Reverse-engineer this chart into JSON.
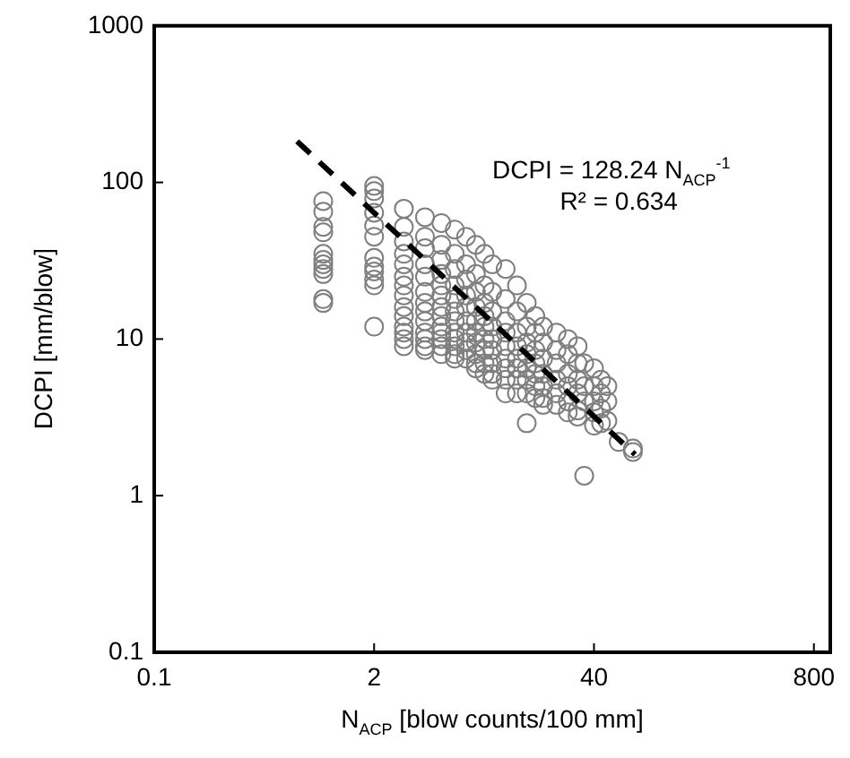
{
  "chart_data": {
    "type": "scatter",
    "xlabel": "N$_{ACP}$ [blow counts/100 mm]",
    "ylabel": "DCPI [mm/blow]",
    "annotations": [
      "DCPI = 128.24  N$_{ACP}$$^{-1}$",
      "R² = 0.634"
    ],
    "log": "xy",
    "grid": false,
    "legend": false,
    "xlim": [
      0.1,
      1000
    ],
    "xticks": [
      0.1,
      2,
      40,
      800
    ],
    "ylim": [
      0.1,
      1000
    ],
    "yticks": [
      0.1,
      1,
      10,
      100,
      1000
    ],
    "series": [
      {
        "marker": "circle",
        "color": "#7f7f7f",
        "x": [
          1,
          1,
          1,
          1,
          1,
          1,
          1,
          1,
          1,
          1,
          1,
          2,
          2,
          2,
          2,
          2,
          2,
          2,
          2,
          2,
          2,
          2,
          2,
          3,
          3,
          3,
          3,
          3,
          3,
          3,
          3,
          3,
          3,
          3,
          3,
          3,
          3,
          4,
          4,
          4,
          4,
          4,
          4,
          4,
          4,
          4,
          4,
          4,
          4,
          4,
          5,
          5,
          5,
          5,
          5,
          5,
          5,
          5,
          5,
          5,
          5,
          5,
          5,
          6,
          6,
          6,
          6,
          6,
          6,
          6,
          6,
          6,
          6,
          6,
          6,
          7,
          7,
          7,
          7,
          7,
          7,
          7,
          7,
          7,
          7,
          8,
          8,
          8,
          8,
          8,
          8,
          8,
          8,
          8,
          8,
          9,
          9,
          9,
          9,
          9,
          9,
          9,
          9,
          9,
          10,
          10,
          10,
          10,
          10,
          10,
          10,
          10,
          10,
          12,
          12,
          12,
          12,
          12,
          12,
          12,
          12,
          12,
          14,
          14,
          14,
          14,
          14,
          14,
          14,
          14,
          16,
          16,
          16,
          16,
          16,
          16,
          16,
          16,
          18,
          18,
          18,
          18,
          18,
          18,
          18,
          20,
          20,
          20,
          20,
          20,
          20,
          20,
          24,
          24,
          24,
          24,
          24,
          24,
          28,
          28,
          28,
          28,
          28,
          28,
          32,
          32,
          32,
          32,
          32,
          32,
          35,
          35,
          35,
          35,
          40,
          40,
          40,
          40,
          40,
          44,
          44,
          44,
          44,
          48,
          48,
          48,
          56,
          68,
          68
        ],
        "values": [
          76,
          65,
          52,
          48,
          35,
          32,
          30,
          28,
          26,
          18,
          17,
          95,
          88,
          79,
          64,
          53,
          45,
          33,
          29,
          27,
          24,
          22,
          12,
          68,
          52,
          42,
          35,
          30,
          25,
          22,
          19,
          16,
          14,
          12,
          11,
          10,
          9,
          60,
          45,
          38,
          30,
          25,
          20,
          17,
          15,
          13,
          11,
          10,
          9,
          8.5,
          55,
          40,
          32,
          26,
          22,
          19,
          16,
          14,
          12,
          11,
          10,
          9,
          8,
          50,
          35,
          28,
          22,
          18,
          15,
          13,
          11,
          10,
          9,
          8,
          7.5,
          45,
          30,
          24,
          19,
          16,
          13,
          11,
          9.5,
          8.5,
          7.5,
          40,
          26,
          20,
          16,
          13,
          11,
          9.5,
          8,
          7,
          6.5,
          35,
          22,
          17,
          14,
          12,
          10,
          8.5,
          7,
          6,
          30,
          20,
          15,
          12,
          10,
          8.5,
          7,
          6,
          5.5,
          28,
          18,
          13,
          11,
          9,
          7.5,
          6.5,
          5.5,
          4.5,
          22,
          15,
          11,
          9,
          7.5,
          6.5,
          5.5,
          4.5,
          17,
          12,
          9.5,
          8,
          6.5,
          5.5,
          4.5,
          2.9,
          14,
          11,
          8.5,
          7,
          6,
          5,
          4.2,
          12,
          9.5,
          7.5,
          6,
          5,
          4.2,
          3.8,
          11,
          8.5,
          7,
          5.5,
          4.5,
          3.8,
          10,
          8,
          6,
          5,
          4,
          3.4,
          9,
          7,
          5.5,
          4.5,
          3.5,
          3.2,
          1.34,
          7,
          5,
          4,
          6.5,
          5,
          4,
          3.4,
          2.8,
          5.5,
          4.5,
          3.6,
          2.9,
          5,
          4,
          3,
          2.2,
          1.9,
          2
        ]
      },
      {
        "type": "line",
        "marker": "none",
        "line_style": "dashed",
        "color": "#000000",
        "x": [
          0.7,
          70
        ],
        "values": [
          183,
          1.83
        ]
      }
    ]
  }
}
